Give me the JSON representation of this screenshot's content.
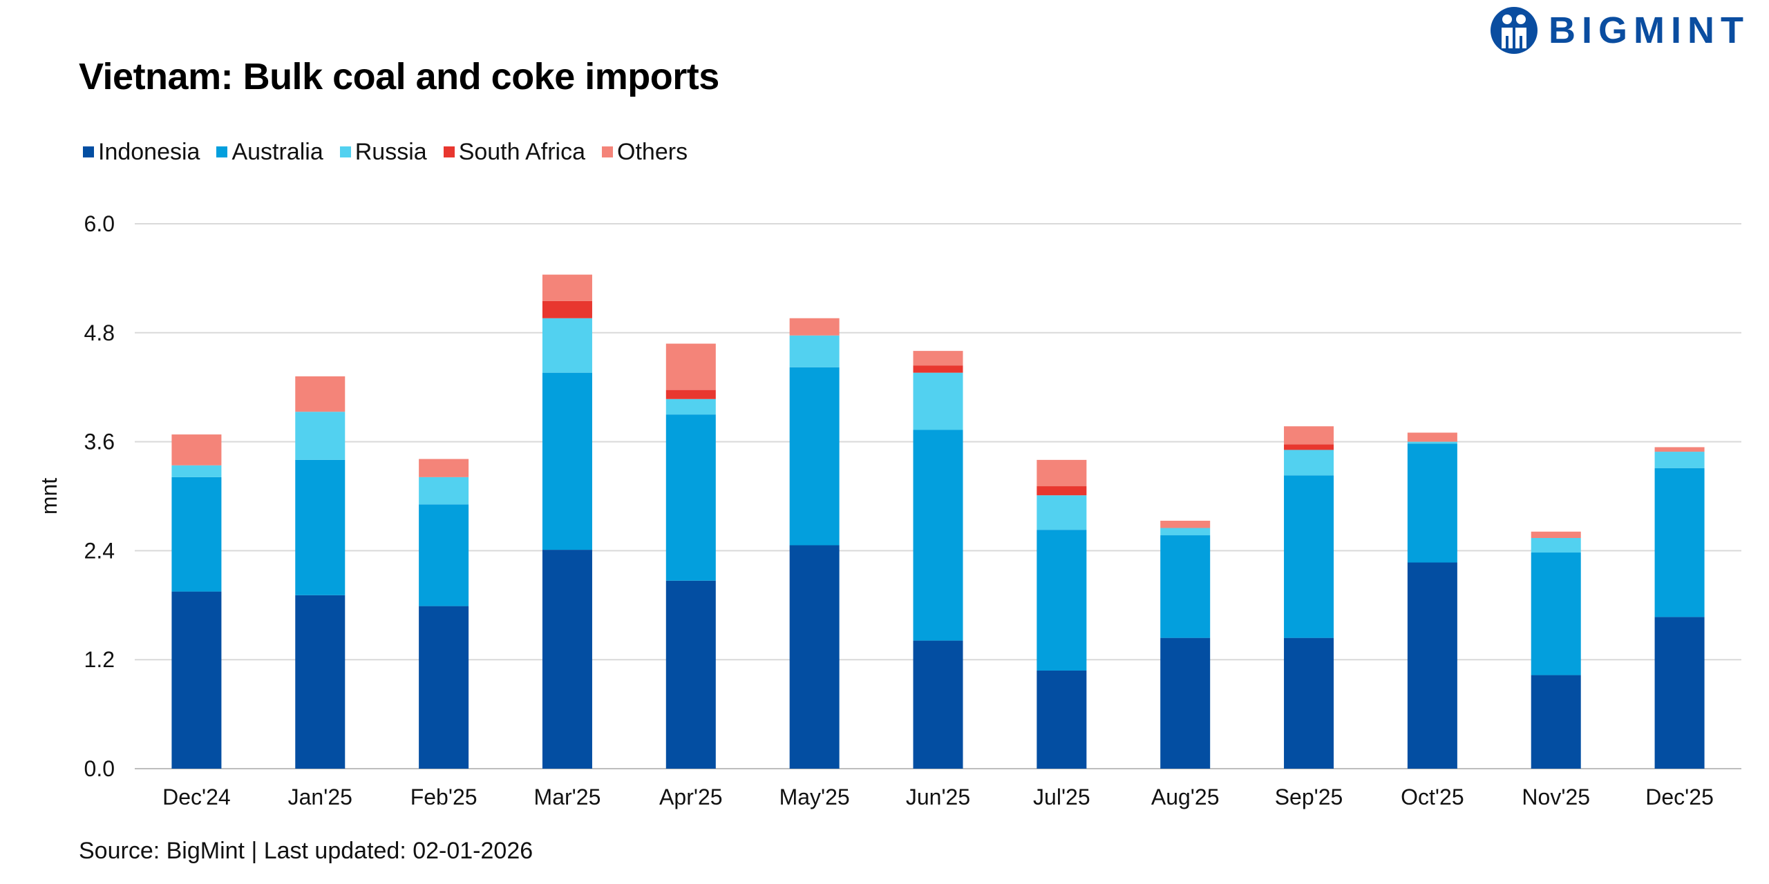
{
  "logo": {
    "text": "BIGMINT",
    "color": "#0a4da0"
  },
  "source": "Source: BigMint | Last updated: 02-01-2026",
  "chart_data": {
    "type": "bar",
    "stacked": true,
    "title": "Vietnam: Bulk coal and coke imports",
    "xlabel": "",
    "ylabel": "mnt",
    "ylim": [
      0,
      6.0
    ],
    "yticks": [
      "0.0",
      "1.2",
      "2.4",
      "3.6",
      "4.8",
      "6.0"
    ],
    "grid": true,
    "legend_position": "top-left",
    "categories": [
      "Dec'24",
      "Jan'25",
      "Feb'25",
      "Mar'25",
      "Apr'25",
      "May'25",
      "Jun'25",
      "Jul'25",
      "Aug'25",
      "Sep'25",
      "Oct'25",
      "Nov'25",
      "Dec'25"
    ],
    "series": [
      {
        "name": "Indonesia",
        "color": "#034ea2",
        "values": [
          1.95,
          1.91,
          1.79,
          2.41,
          2.07,
          2.46,
          1.41,
          1.08,
          1.44,
          1.44,
          2.27,
          1.03,
          1.67
        ]
      },
      {
        "name": "Australia",
        "color": "#039fdd",
        "values": [
          1.26,
          1.49,
          1.12,
          1.95,
          1.83,
          1.96,
          2.32,
          1.55,
          1.13,
          1.79,
          1.31,
          1.35,
          1.64
        ]
      },
      {
        "name": "Russia",
        "color": "#52d1f0",
        "values": [
          0.13,
          0.53,
          0.3,
          0.6,
          0.17,
          0.35,
          0.63,
          0.38,
          0.08,
          0.28,
          0.02,
          0.16,
          0.18
        ]
      },
      {
        "name": "South Africa",
        "color": "#e8372f",
        "values": [
          0.0,
          0.0,
          0.0,
          0.19,
          0.1,
          0.0,
          0.08,
          0.1,
          0.0,
          0.06,
          0.0,
          0.0,
          0.0
        ]
      },
      {
        "name": "Others",
        "color": "#f48479",
        "values": [
          0.34,
          0.39,
          0.2,
          0.29,
          0.51,
          0.19,
          0.16,
          0.29,
          0.08,
          0.2,
          0.1,
          0.07,
          0.05
        ]
      }
    ]
  }
}
